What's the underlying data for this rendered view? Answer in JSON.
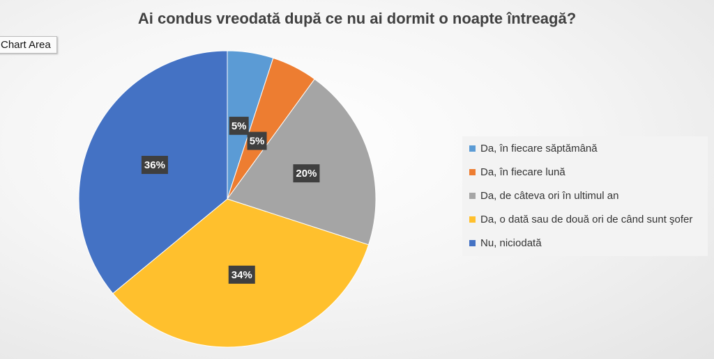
{
  "chart_data": {
    "type": "pie",
    "title": "Ai condus vreodată după ce nu ai dormit o noapte întreagă?",
    "slices": [
      {
        "label": "Da, în fiecare săptămână",
        "value": 5,
        "display": "5%",
        "color": "#5B9BD5"
      },
      {
        "label": "Da, în fiecare lună",
        "value": 5,
        "display": "5%",
        "color": "#ED7D31"
      },
      {
        "label": "Da, de câteva ori în ultimul an",
        "value": 20,
        "display": "20%",
        "color": "#A5A5A5"
      },
      {
        "label": "Da, o dată sau de două ori de când sunt şofer",
        "value": 34,
        "display": "34%",
        "color": "#FFC02D"
      },
      {
        "label": "Nu, niciodată",
        "value": 36,
        "display": "36%",
        "color": "#4472C4"
      }
    ],
    "legend_position": "right"
  },
  "tooltip": {
    "text": "Chart Area"
  }
}
